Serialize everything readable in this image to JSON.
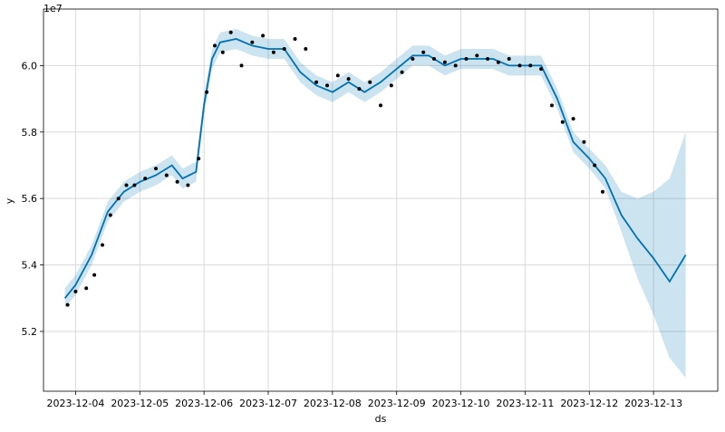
{
  "chart_data": {
    "type": "line",
    "title": "",
    "xlabel": "ds",
    "ylabel": "y",
    "y_offset_label": "1e7",
    "grid": true,
    "xlim": [
      "2023-12-03 12:00",
      "2023-12-14 00:00"
    ],
    "ylim": [
      5.02,
      6.17
    ],
    "x_ticks": [
      "2023-12-04",
      "2023-12-05",
      "2023-12-06",
      "2023-12-07",
      "2023-12-08",
      "2023-12-09",
      "2023-12-10",
      "2023-12-11",
      "2023-12-12",
      "2023-12-13"
    ],
    "y_ticks": [
      5.2,
      5.4,
      5.6,
      5.8,
      6.0
    ],
    "colors": {
      "forecast_line": "#0072b2",
      "uncertainty_band": "#0072b2",
      "observations": "#000000"
    },
    "series": [
      {
        "kind": "forecast",
        "x": [
          "2023-12-03 20:00",
          "2023-12-04 00:00",
          "2023-12-04 06:00",
          "2023-12-04 12:00",
          "2023-12-04 18:00",
          "2023-12-05 00:00",
          "2023-12-05 06:00",
          "2023-12-05 12:00",
          "2023-12-05 16:00",
          "2023-12-05 21:00",
          "2023-12-06 00:00",
          "2023-12-06 03:00",
          "2023-12-06 06:00",
          "2023-12-06 12:00",
          "2023-12-06 18:00",
          "2023-12-07 00:00",
          "2023-12-07 06:00",
          "2023-12-07 12:00",
          "2023-12-07 18:00",
          "2023-12-08 00:00",
          "2023-12-08 06:00",
          "2023-12-08 12:00",
          "2023-12-08 18:00",
          "2023-12-09 00:00",
          "2023-12-09 06:00",
          "2023-12-09 12:00",
          "2023-12-09 18:00",
          "2023-12-10 00:00",
          "2023-12-10 06:00",
          "2023-12-10 12:00",
          "2023-12-10 18:00",
          "2023-12-11 00:00",
          "2023-12-11 06:00",
          "2023-12-11 12:00",
          "2023-12-11 18:00",
          "2023-12-12 00:00",
          "2023-12-12 06:00",
          "2023-12-12 12:00",
          "2023-12-12 18:00",
          "2023-12-13 00:00",
          "2023-12-13 06:00",
          "2023-12-13 12:00"
        ],
        "y": [
          5.3,
          5.34,
          5.43,
          5.56,
          5.62,
          5.65,
          5.67,
          5.7,
          5.66,
          5.68,
          5.88,
          6.02,
          6.07,
          6.08,
          6.06,
          6.05,
          6.05,
          5.98,
          5.94,
          5.92,
          5.95,
          5.92,
          5.95,
          5.99,
          6.03,
          6.03,
          6.0,
          6.02,
          6.02,
          6.02,
          6.0,
          6.0,
          6.0,
          5.9,
          5.77,
          5.72,
          5.66,
          5.55,
          5.48,
          5.42,
          5.35,
          5.43
        ],
        "y_lower": [
          5.27,
          5.31,
          5.4,
          5.53,
          5.59,
          5.62,
          5.64,
          5.67,
          5.63,
          5.65,
          5.85,
          5.99,
          6.04,
          6.05,
          6.03,
          6.02,
          6.02,
          5.95,
          5.91,
          5.89,
          5.92,
          5.89,
          5.92,
          5.96,
          6.0,
          6.0,
          5.97,
          5.99,
          5.99,
          5.99,
          5.97,
          5.97,
          5.97,
          5.87,
          5.74,
          5.69,
          5.63,
          5.5,
          5.36,
          5.25,
          5.12,
          5.06
        ],
        "y_upper": [
          5.33,
          5.37,
          5.46,
          5.59,
          5.65,
          5.68,
          5.7,
          5.73,
          5.69,
          5.71,
          5.91,
          6.05,
          6.1,
          6.11,
          6.09,
          6.08,
          6.08,
          6.01,
          5.97,
          5.95,
          5.98,
          5.95,
          5.98,
          6.02,
          6.06,
          6.06,
          6.03,
          6.05,
          6.05,
          6.05,
          6.03,
          6.03,
          6.03,
          5.93,
          5.8,
          5.75,
          5.7,
          5.62,
          5.6,
          5.62,
          5.66,
          5.8
        ]
      },
      {
        "kind": "observed",
        "x": [
          "2023-12-03 21:00",
          "2023-12-04 00:00",
          "2023-12-04 04:00",
          "2023-12-04 07:00",
          "2023-12-04 10:00",
          "2023-12-04 13:00",
          "2023-12-04 16:00",
          "2023-12-04 19:00",
          "2023-12-04 22:00",
          "2023-12-05 02:00",
          "2023-12-05 06:00",
          "2023-12-05 10:00",
          "2023-12-05 14:00",
          "2023-12-05 18:00",
          "2023-12-05 22:00",
          "2023-12-06 01:00",
          "2023-12-06 04:00",
          "2023-12-06 07:00",
          "2023-12-06 10:00",
          "2023-12-06 14:00",
          "2023-12-06 18:00",
          "2023-12-06 22:00",
          "2023-12-07 02:00",
          "2023-12-07 06:00",
          "2023-12-07 10:00",
          "2023-12-07 14:00",
          "2023-12-07 18:00",
          "2023-12-07 22:00",
          "2023-12-08 02:00",
          "2023-12-08 06:00",
          "2023-12-08 10:00",
          "2023-12-08 14:00",
          "2023-12-08 18:00",
          "2023-12-08 22:00",
          "2023-12-09 02:00",
          "2023-12-09 06:00",
          "2023-12-09 10:00",
          "2023-12-09 14:00",
          "2023-12-09 18:00",
          "2023-12-09 22:00",
          "2023-12-10 02:00",
          "2023-12-10 06:00",
          "2023-12-10 10:00",
          "2023-12-10 14:00",
          "2023-12-10 18:00",
          "2023-12-10 22:00",
          "2023-12-11 02:00",
          "2023-12-11 06:00",
          "2023-12-11 10:00",
          "2023-12-11 14:00",
          "2023-12-11 18:00",
          "2023-12-11 22:00",
          "2023-12-12 02:00",
          "2023-12-12 05:00"
        ],
        "y": [
          5.28,
          5.32,
          5.33,
          5.37,
          5.46,
          5.55,
          5.6,
          5.64,
          5.64,
          5.66,
          5.69,
          5.67,
          5.65,
          5.64,
          5.72,
          5.92,
          6.06,
          6.04,
          6.1,
          6.0,
          6.07,
          6.09,
          6.04,
          6.05,
          6.08,
          6.05,
          5.95,
          5.94,
          5.97,
          5.96,
          5.93,
          5.95,
          5.88,
          5.94,
          5.98,
          6.02,
          6.04,
          6.02,
          6.01,
          6.0,
          6.02,
          6.03,
          6.02,
          6.01,
          6.02,
          6.0,
          6.0,
          5.99,
          5.88,
          5.83,
          5.84,
          5.77,
          5.7,
          5.62
        ]
      }
    ]
  }
}
